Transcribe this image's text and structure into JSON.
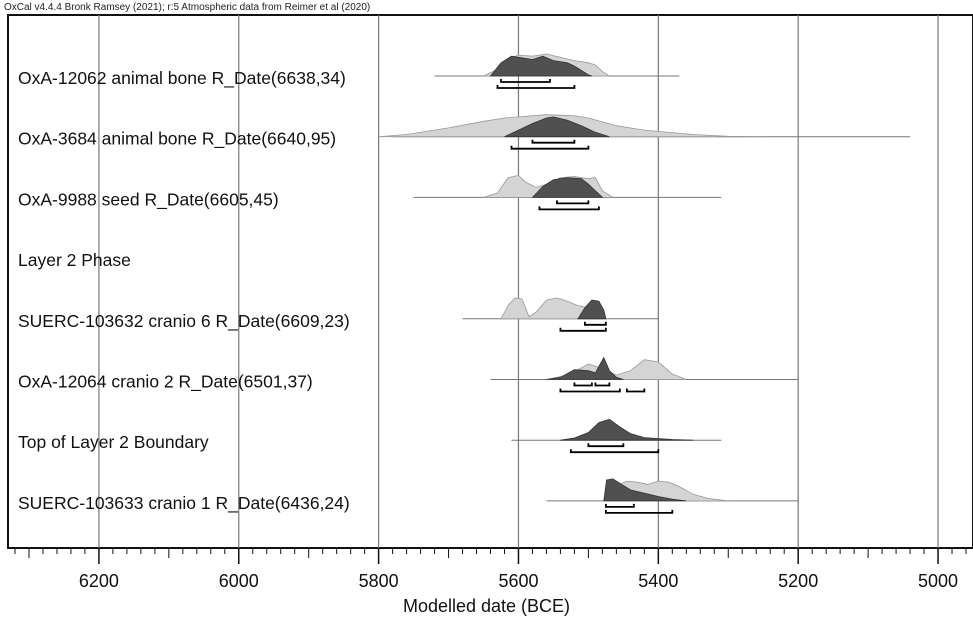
{
  "credit": "OxCal v4.4.4 Bronk Ramsey (2021); r:5 Atmospheric data from Reimer et al (2020)",
  "chart_data": {
    "type": "ridgeline",
    "xlabel": "Modelled date (BCE)",
    "xlim": [
      6330,
      4950
    ],
    "x_ticks": [
      6200,
      6000,
      5800,
      5600,
      5400,
      5200,
      5000
    ],
    "grid": true,
    "rows": [
      {
        "label": "OxA-12062 animal bone R_Date(6638,34)",
        "line": [
          5720,
          5370
        ],
        "light": [
          [
            5650,
            0
          ],
          [
            5630,
            0.3
          ],
          [
            5615,
            0.8
          ],
          [
            5600,
            0.95
          ],
          [
            5580,
            0.9
          ],
          [
            5560,
            1
          ],
          [
            5540,
            0.85
          ],
          [
            5520,
            0.7
          ],
          [
            5500,
            0.6
          ],
          [
            5490,
            0.5
          ],
          [
            5480,
            0.2
          ],
          [
            5470,
            0
          ]
        ],
        "dark": [
          [
            5640,
            0
          ],
          [
            5625,
            0.6
          ],
          [
            5610,
            0.9
          ],
          [
            5600,
            0.85
          ],
          [
            5580,
            0.75
          ],
          [
            5565,
            0.9
          ],
          [
            5550,
            0.7
          ],
          [
            5530,
            0.6
          ],
          [
            5520,
            0.45
          ],
          [
            5510,
            0.25
          ],
          [
            5500,
            0.05
          ],
          [
            5495,
            0
          ]
        ],
        "ranges": [
          [
            [
              5625,
              5555
            ]
          ],
          [
            [
              5630,
              5520
            ]
          ]
        ]
      },
      {
        "label": "OxA-3684 animal bone R_Date(6640,95)",
        "line": [
          5780,
          5040
        ],
        "light": [
          [
            5800,
            0
          ],
          [
            5760,
            0.1
          ],
          [
            5700,
            0.4
          ],
          [
            5650,
            0.7
          ],
          [
            5620,
            0.85
          ],
          [
            5600,
            0.9
          ],
          [
            5560,
            1
          ],
          [
            5520,
            0.95
          ],
          [
            5500,
            0.85
          ],
          [
            5460,
            0.5
          ],
          [
            5420,
            0.3
          ],
          [
            5350,
            0.1
          ],
          [
            5300,
            0.02
          ],
          [
            5250,
            0
          ]
        ],
        "dark": [
          [
            5620,
            0
          ],
          [
            5600,
            0.3
          ],
          [
            5580,
            0.6
          ],
          [
            5560,
            0.85
          ],
          [
            5550,
            0.9
          ],
          [
            5530,
            0.75
          ],
          [
            5510,
            0.5
          ],
          [
            5490,
            0.2
          ],
          [
            5470,
            0
          ]
        ],
        "ranges": [
          [
            [
              5580,
              5520
            ]
          ],
          [
            [
              5610,
              5500
            ]
          ]
        ]
      },
      {
        "label": "OxA-9988 seed R_Date(6605,45)",
        "line": [
          5750,
          5310
        ],
        "light": [
          [
            5650,
            0
          ],
          [
            5630,
            0.2
          ],
          [
            5615,
            0.9
          ],
          [
            5600,
            1
          ],
          [
            5590,
            0.7
          ],
          [
            5575,
            0.45
          ],
          [
            5560,
            0.6
          ],
          [
            5540,
            0.9
          ],
          [
            5520,
            0.95
          ],
          [
            5500,
            0.85
          ],
          [
            5490,
            0.9
          ],
          [
            5480,
            0.3
          ],
          [
            5465,
            0
          ]
        ],
        "dark": [
          [
            5580,
            0
          ],
          [
            5565,
            0.5
          ],
          [
            5550,
            0.8
          ],
          [
            5530,
            0.9
          ],
          [
            5510,
            0.85
          ],
          [
            5500,
            0.6
          ],
          [
            5490,
            0.3
          ],
          [
            5480,
            0
          ]
        ],
        "ranges": [
          [
            [
              5545,
              5500
            ]
          ],
          [
            [
              5570,
              5485
            ]
          ]
        ]
      },
      {
        "label": "Layer 2 Phase",
        "line": null,
        "light": [],
        "dark": [],
        "ranges": []
      },
      {
        "label": "SUERC-103632 cranio 6 R_Date(6609,23)",
        "line": [
          5680,
          5400
        ],
        "light": [
          [
            5625,
            0
          ],
          [
            5615,
            0.6
          ],
          [
            5605,
            0.95
          ],
          [
            5595,
            0.9
          ],
          [
            5585,
            0.1
          ],
          [
            5575,
            0.3
          ],
          [
            5560,
            0.85
          ],
          [
            5545,
            0.95
          ],
          [
            5530,
            0.8
          ],
          [
            5515,
            0.6
          ],
          [
            5500,
            0.5
          ],
          [
            5490,
            0.25
          ],
          [
            5480,
            0
          ]
        ],
        "dark": [
          [
            5515,
            0
          ],
          [
            5505,
            0.5
          ],
          [
            5495,
            0.85
          ],
          [
            5485,
            0.8
          ],
          [
            5478,
            0.4
          ],
          [
            5475,
            0
          ]
        ],
        "ranges": [
          [
            [
              5505,
              5475
            ]
          ],
          [
            [
              5540,
              5475
            ]
          ]
        ]
      },
      {
        "label": "OxA-12064 cranio 2 R_Date(6501,37)",
        "line": [
          5640,
          5200
        ],
        "light": [
          [
            5560,
            0
          ],
          [
            5530,
            0.2
          ],
          [
            5500,
            0.7
          ],
          [
            5480,
            0.5
          ],
          [
            5460,
            0.2
          ],
          [
            5440,
            0.4
          ],
          [
            5420,
            0.9
          ],
          [
            5400,
            0.8
          ],
          [
            5380,
            0.25
          ],
          [
            5360,
            0
          ]
        ],
        "dark": [
          [
            5560,
            0
          ],
          [
            5540,
            0.1
          ],
          [
            5520,
            0.45
          ],
          [
            5500,
            0.4
          ],
          [
            5490,
            0.3
          ],
          [
            5485,
            0.6
          ],
          [
            5478,
            1
          ],
          [
            5470,
            0.4
          ],
          [
            5460,
            0.1
          ],
          [
            5450,
            0
          ]
        ],
        "ranges": [
          [
            [
              5520,
              5495
            ],
            [
              5490,
              5470
            ]
          ],
          [
            [
              5540,
              5455
            ],
            [
              5445,
              5420
            ]
          ]
        ]
      },
      {
        "label": "Top of Layer 2 Boundary",
        "line": [
          5610,
          5310
        ],
        "light": [],
        "dark": [
          [
            5540,
            0
          ],
          [
            5520,
            0.1
          ],
          [
            5500,
            0.35
          ],
          [
            5485,
            0.8
          ],
          [
            5470,
            0.95
          ],
          [
            5455,
            0.6
          ],
          [
            5440,
            0.3
          ],
          [
            5420,
            0.12
          ],
          [
            5380,
            0.03
          ],
          [
            5350,
            0
          ]
        ],
        "ranges": [
          [
            [
              5500,
              5450
            ]
          ],
          [
            [
              5525,
              5400
            ]
          ]
        ]
      },
      {
        "label": "SUERC-103633 cranio 1 R_Date(6436,24)",
        "line": [
          5560,
          5200
        ],
        "light": [
          [
            5470,
            0
          ],
          [
            5460,
            0.7
          ],
          [
            5445,
            0.9
          ],
          [
            5430,
            0.85
          ],
          [
            5415,
            0.75
          ],
          [
            5400,
            0.9
          ],
          [
            5385,
            0.85
          ],
          [
            5370,
            0.65
          ],
          [
            5350,
            0.3
          ],
          [
            5330,
            0.12
          ],
          [
            5300,
            0
          ]
        ],
        "dark": [
          [
            5478,
            0
          ],
          [
            5474,
            0.95
          ],
          [
            5465,
            1
          ],
          [
            5455,
            0.8
          ],
          [
            5440,
            0.5
          ],
          [
            5420,
            0.35
          ],
          [
            5400,
            0.2
          ],
          [
            5380,
            0.08
          ],
          [
            5360,
            0
          ]
        ],
        "ranges": [
          [
            [
              5475,
              5435
            ]
          ],
          [
            [
              5475,
              5380
            ]
          ]
        ]
      }
    ]
  }
}
